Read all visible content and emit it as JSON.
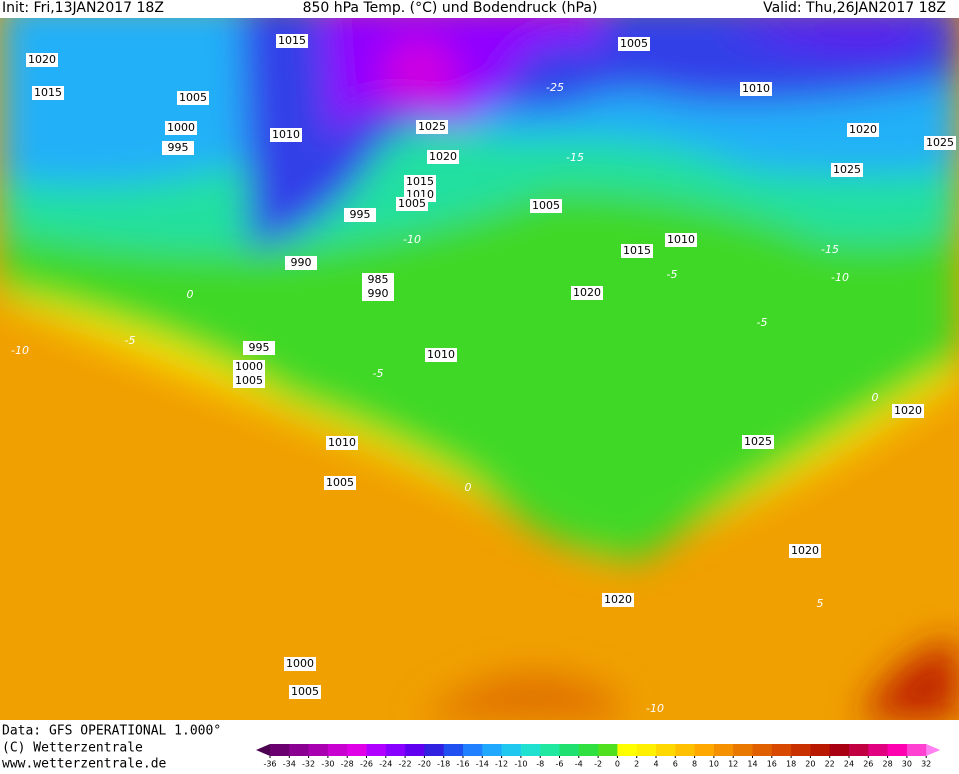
{
  "header": {
    "init": "Init: Fri,13JAN2017 18Z",
    "title": "850 hPa Temp. (°C) und Bodendruck (hPa)",
    "valid": "Valid: Thu,26JAN2017 18Z"
  },
  "footer": {
    "source": "Data: GFS OPERATIONAL 1.000°",
    "copyright": "(C) Wetterzentrale",
    "url": "www.wetterzentrale.de"
  },
  "isobar_labels": [
    "1015",
    "1020",
    "1015",
    "1005",
    "1000",
    "995",
    "1010",
    "1005",
    "1010",
    "1020",
    "1025",
    "1025",
    "1025",
    "1020",
    "1015",
    "1010",
    "1005",
    "995",
    "1005",
    "1010",
    "1015",
    "990",
    "985",
    "990",
    "1020",
    "995",
    "1000",
    "1005",
    "1010",
    "1020",
    "1025",
    "1010",
    "1005",
    "1020",
    "1020",
    "1000",
    "1005"
  ],
  "temperature_labels": [
    "-25",
    "-15",
    "-10",
    "-15",
    "-10",
    "0",
    "-5",
    "-10",
    "-5",
    "-5",
    "-5",
    "0",
    "0",
    "-10",
    "5"
  ],
  "colorbar": {
    "ticks": [
      -36,
      -34,
      -32,
      -30,
      -28,
      -26,
      -24,
      -22,
      -20,
      -18,
      -16,
      -14,
      -12,
      -10,
      -8,
      -6,
      -4,
      -2,
      0,
      2,
      4,
      6,
      8,
      10,
      12,
      14,
      16,
      18,
      20,
      22,
      24,
      26,
      28,
      30,
      32
    ],
    "colors": [
      "#4b0050",
      "#6a0070",
      "#8a0090",
      "#a800b0",
      "#c800d0",
      "#e000e8",
      "#b000ff",
      "#8800ff",
      "#6000f0",
      "#3020e0",
      "#2050f0",
      "#2080ff",
      "#20a8ff",
      "#20c8f0",
      "#20e0d0",
      "#20e8a0",
      "#20e070",
      "#30e040",
      "#50e020",
      "#ffff00",
      "#fff000",
      "#ffd800",
      "#ffc000",
      "#ffa800",
      "#f59000",
      "#e87800",
      "#e06000",
      "#d84800",
      "#c83000",
      "#b81800",
      "#a80010",
      "#c00040",
      "#e00080",
      "#ff00b0",
      "#ff40d0",
      "#ff80f0"
    ]
  }
}
